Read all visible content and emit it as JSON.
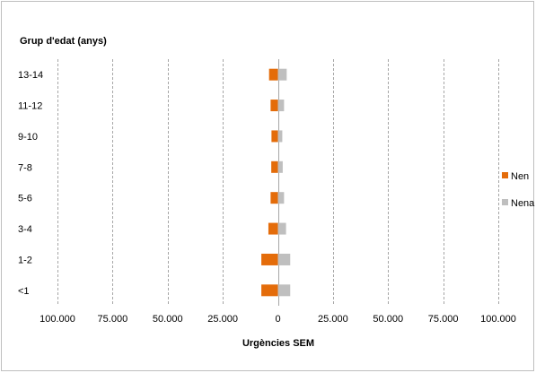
{
  "chart_data": {
    "type": "bar",
    "orientation": "horizontal",
    "stacked_diverging": true,
    "y_title": "Grup d'edat (anys)",
    "x_title": "Urgències SEM",
    "categories": [
      "13-14",
      "11-12",
      "9-10",
      "7-8",
      "5-6",
      "3-4",
      "1-2",
      "<1"
    ],
    "xlim": [
      -100000,
      100000
    ],
    "x_ticks": [
      -100000,
      -75000,
      -50000,
      -25000,
      0,
      25000,
      50000,
      75000,
      100000
    ],
    "x_tick_labels": [
      "100.000",
      "75.000",
      "50.000",
      "25.000",
      "0",
      "25.000",
      "50.000",
      "75.000",
      "100.000"
    ],
    "grid": "vertical-dashed",
    "legend_position": "right",
    "series": [
      {
        "name": "Nen",
        "color": "#e46c0a",
        "values": [
          -4000,
          -3300,
          -2900,
          -3000,
          -3300,
          -4300,
          -7500,
          -7500
        ]
      },
      {
        "name": "Nena",
        "color": "#bfbfbf",
        "values": [
          4000,
          2800,
          2000,
          2200,
          2800,
          3700,
          5600,
          5600
        ]
      }
    ]
  }
}
